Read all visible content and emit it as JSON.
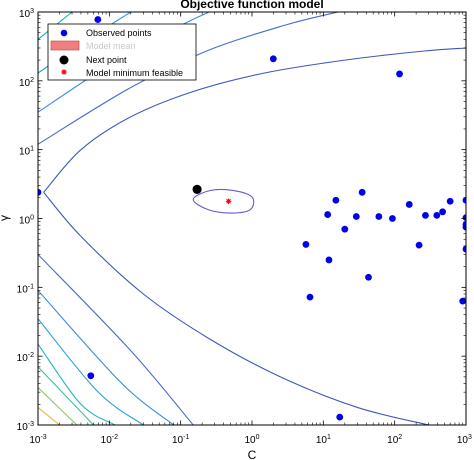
{
  "chart_data": {
    "type": "scatter",
    "title": "Objective function model",
    "xlabel": "C",
    "ylabel": "γ",
    "x_scale": "log",
    "y_scale": "log",
    "xlim": [
      0.001,
      1000
    ],
    "ylim": [
      0.001,
      1000
    ],
    "x_ticks": [
      {
        "base": "10",
        "exp": "-3",
        "value": 0.001
      },
      {
        "base": "10",
        "exp": "-2",
        "value": 0.01
      },
      {
        "base": "10",
        "exp": "-1",
        "value": 0.1
      },
      {
        "base": "10",
        "exp": "0",
        "value": 1
      },
      {
        "base": "10",
        "exp": "1",
        "value": 10
      },
      {
        "base": "10",
        "exp": "2",
        "value": 100
      },
      {
        "base": "10",
        "exp": "3",
        "value": 1000
      }
    ],
    "y_ticks": [
      {
        "base": "10",
        "exp": "-3",
        "value": 0.001
      },
      {
        "base": "10",
        "exp": "-2",
        "value": 0.01
      },
      {
        "base": "10",
        "exp": "-1",
        "value": 0.1
      },
      {
        "base": "10",
        "exp": "0",
        "value": 1
      },
      {
        "base": "10",
        "exp": "1",
        "value": 10
      },
      {
        "base": "10",
        "exp": "2",
        "value": 100
      },
      {
        "base": "10",
        "exp": "3",
        "value": 1000
      }
    ],
    "grid": false,
    "legend_position": "top-left",
    "legend": [
      {
        "label": "Observed points",
        "marker": "dot",
        "color": "#0000ee"
      },
      {
        "label": "Model mean",
        "marker": "box",
        "color": "#f08080"
      },
      {
        "label": "Next point",
        "marker": "dot",
        "color": "#000000"
      },
      {
        "label": "Model minimum feasible",
        "marker": "star",
        "color": "#ee0000"
      }
    ],
    "series": [
      {
        "name": "Observed points",
        "color": "#0000ee",
        "points": [
          [
            0.0069,
            776
          ],
          [
            1.99,
            209
          ],
          [
            117,
            126
          ],
          [
            0.001,
            2.4
          ],
          [
            35,
            2.4
          ],
          [
            15,
            1.84
          ],
          [
            160,
            1.6
          ],
          [
            600,
            1.78
          ],
          [
            1000,
            1.84
          ],
          [
            11.5,
            1.14
          ],
          [
            29,
            1.07
          ],
          [
            60,
            1.07
          ],
          [
            93,
            1.0
          ],
          [
            270,
            1.11
          ],
          [
            390,
            1.11
          ],
          [
            470,
            1.25
          ],
          [
            1000,
            1.03
          ],
          [
            1000,
            0.82
          ],
          [
            20,
            0.7
          ],
          [
            1000,
            0.75
          ],
          [
            5.7,
            0.42
          ],
          [
            12,
            0.25
          ],
          [
            220,
            0.41
          ],
          [
            1000,
            0.36
          ],
          [
            43,
            0.14
          ],
          [
            6.5,
            0.072
          ],
          [
            900,
            0.063
          ],
          [
            0.0055,
            0.0052
          ],
          [
            17,
            0.0013
          ]
        ]
      },
      {
        "name": "Next point",
        "color": "#000000",
        "points": [
          [
            0.17,
            2.65
          ]
        ]
      },
      {
        "name": "Model minimum feasible",
        "color": "#ee0000",
        "points": [
          [
            0.47,
            1.78
          ]
        ]
      }
    ],
    "contours": [
      {
        "color": "#3d57bd",
        "points": [
          [
            0.0012,
            2.4
          ],
          [
            0.004,
            10
          ],
          [
            0.02,
            30
          ],
          [
            0.15,
            70
          ],
          [
            1.5,
            130
          ],
          [
            20,
            200
          ],
          [
            250,
            270
          ],
          [
            1000,
            300
          ]
        ]
      },
      {
        "color": "#3d57bd",
        "points": [
          [
            0.0012,
            2.4
          ],
          [
            0.004,
            0.55
          ],
          [
            0.03,
            0.08
          ],
          [
            0.25,
            0.018
          ],
          [
            2.5,
            0.005
          ],
          [
            30,
            0.0018
          ],
          [
            300,
            0.001
          ]
        ]
      },
      {
        "color": "#4a6ccc",
        "points": [
          [
            0.001,
            12
          ],
          [
            0.02,
            80
          ],
          [
            0.25,
            280
          ],
          [
            3,
            650
          ],
          [
            16,
            1000
          ]
        ]
      },
      {
        "color": "#4a6ccc",
        "points": [
          [
            0.001,
            0.3
          ],
          [
            0.02,
            0.012
          ],
          [
            0.15,
            0.001
          ]
        ]
      },
      {
        "color": "#3c8be0",
        "points": [
          [
            0.001,
            35
          ],
          [
            0.01,
            170
          ],
          [
            0.09,
            600
          ],
          [
            0.25,
            1000
          ]
        ]
      },
      {
        "color": "#3c8be0",
        "points": [
          [
            0.001,
            0.09
          ],
          [
            0.015,
            0.004
          ],
          [
            0.08,
            0.001
          ]
        ]
      },
      {
        "color": "#2ba0d8",
        "points": [
          [
            0.001,
            130
          ],
          [
            0.005,
            400
          ],
          [
            0.02,
            1000
          ]
        ]
      },
      {
        "color": "#2ba0d8",
        "points": [
          [
            0.001,
            0.035
          ],
          [
            0.007,
            0.003
          ],
          [
            0.03,
            0.001
          ]
        ]
      },
      {
        "color": "#1fb2c0",
        "points": [
          [
            0.001,
            400
          ],
          [
            0.003,
            1000
          ]
        ]
      },
      {
        "color": "#1fb2c0",
        "points": [
          [
            0.001,
            0.015
          ],
          [
            0.004,
            0.002
          ],
          [
            0.012,
            0.001
          ]
        ]
      },
      {
        "color": "#3dbf9a",
        "points": [
          [
            0.001,
            0.007
          ],
          [
            0.006,
            0.001
          ]
        ]
      },
      {
        "color": "#8ec85a",
        "points": [
          [
            0.001,
            0.0035
          ],
          [
            0.0035,
            0.001
          ]
        ]
      },
      {
        "color": "#e0c034",
        "points": [
          [
            0.001,
            0.0018
          ],
          [
            0.002,
            0.001
          ]
        ]
      },
      {
        "color": "#6a5acd",
        "closed": true,
        "points": [
          [
            0.15,
            1.9
          ],
          [
            0.26,
            2.55
          ],
          [
            0.55,
            2.55
          ],
          [
            1.0,
            2.05
          ],
          [
            0.95,
            1.35
          ],
          [
            0.5,
            1.2
          ],
          [
            0.24,
            1.35
          ]
        ]
      }
    ]
  }
}
